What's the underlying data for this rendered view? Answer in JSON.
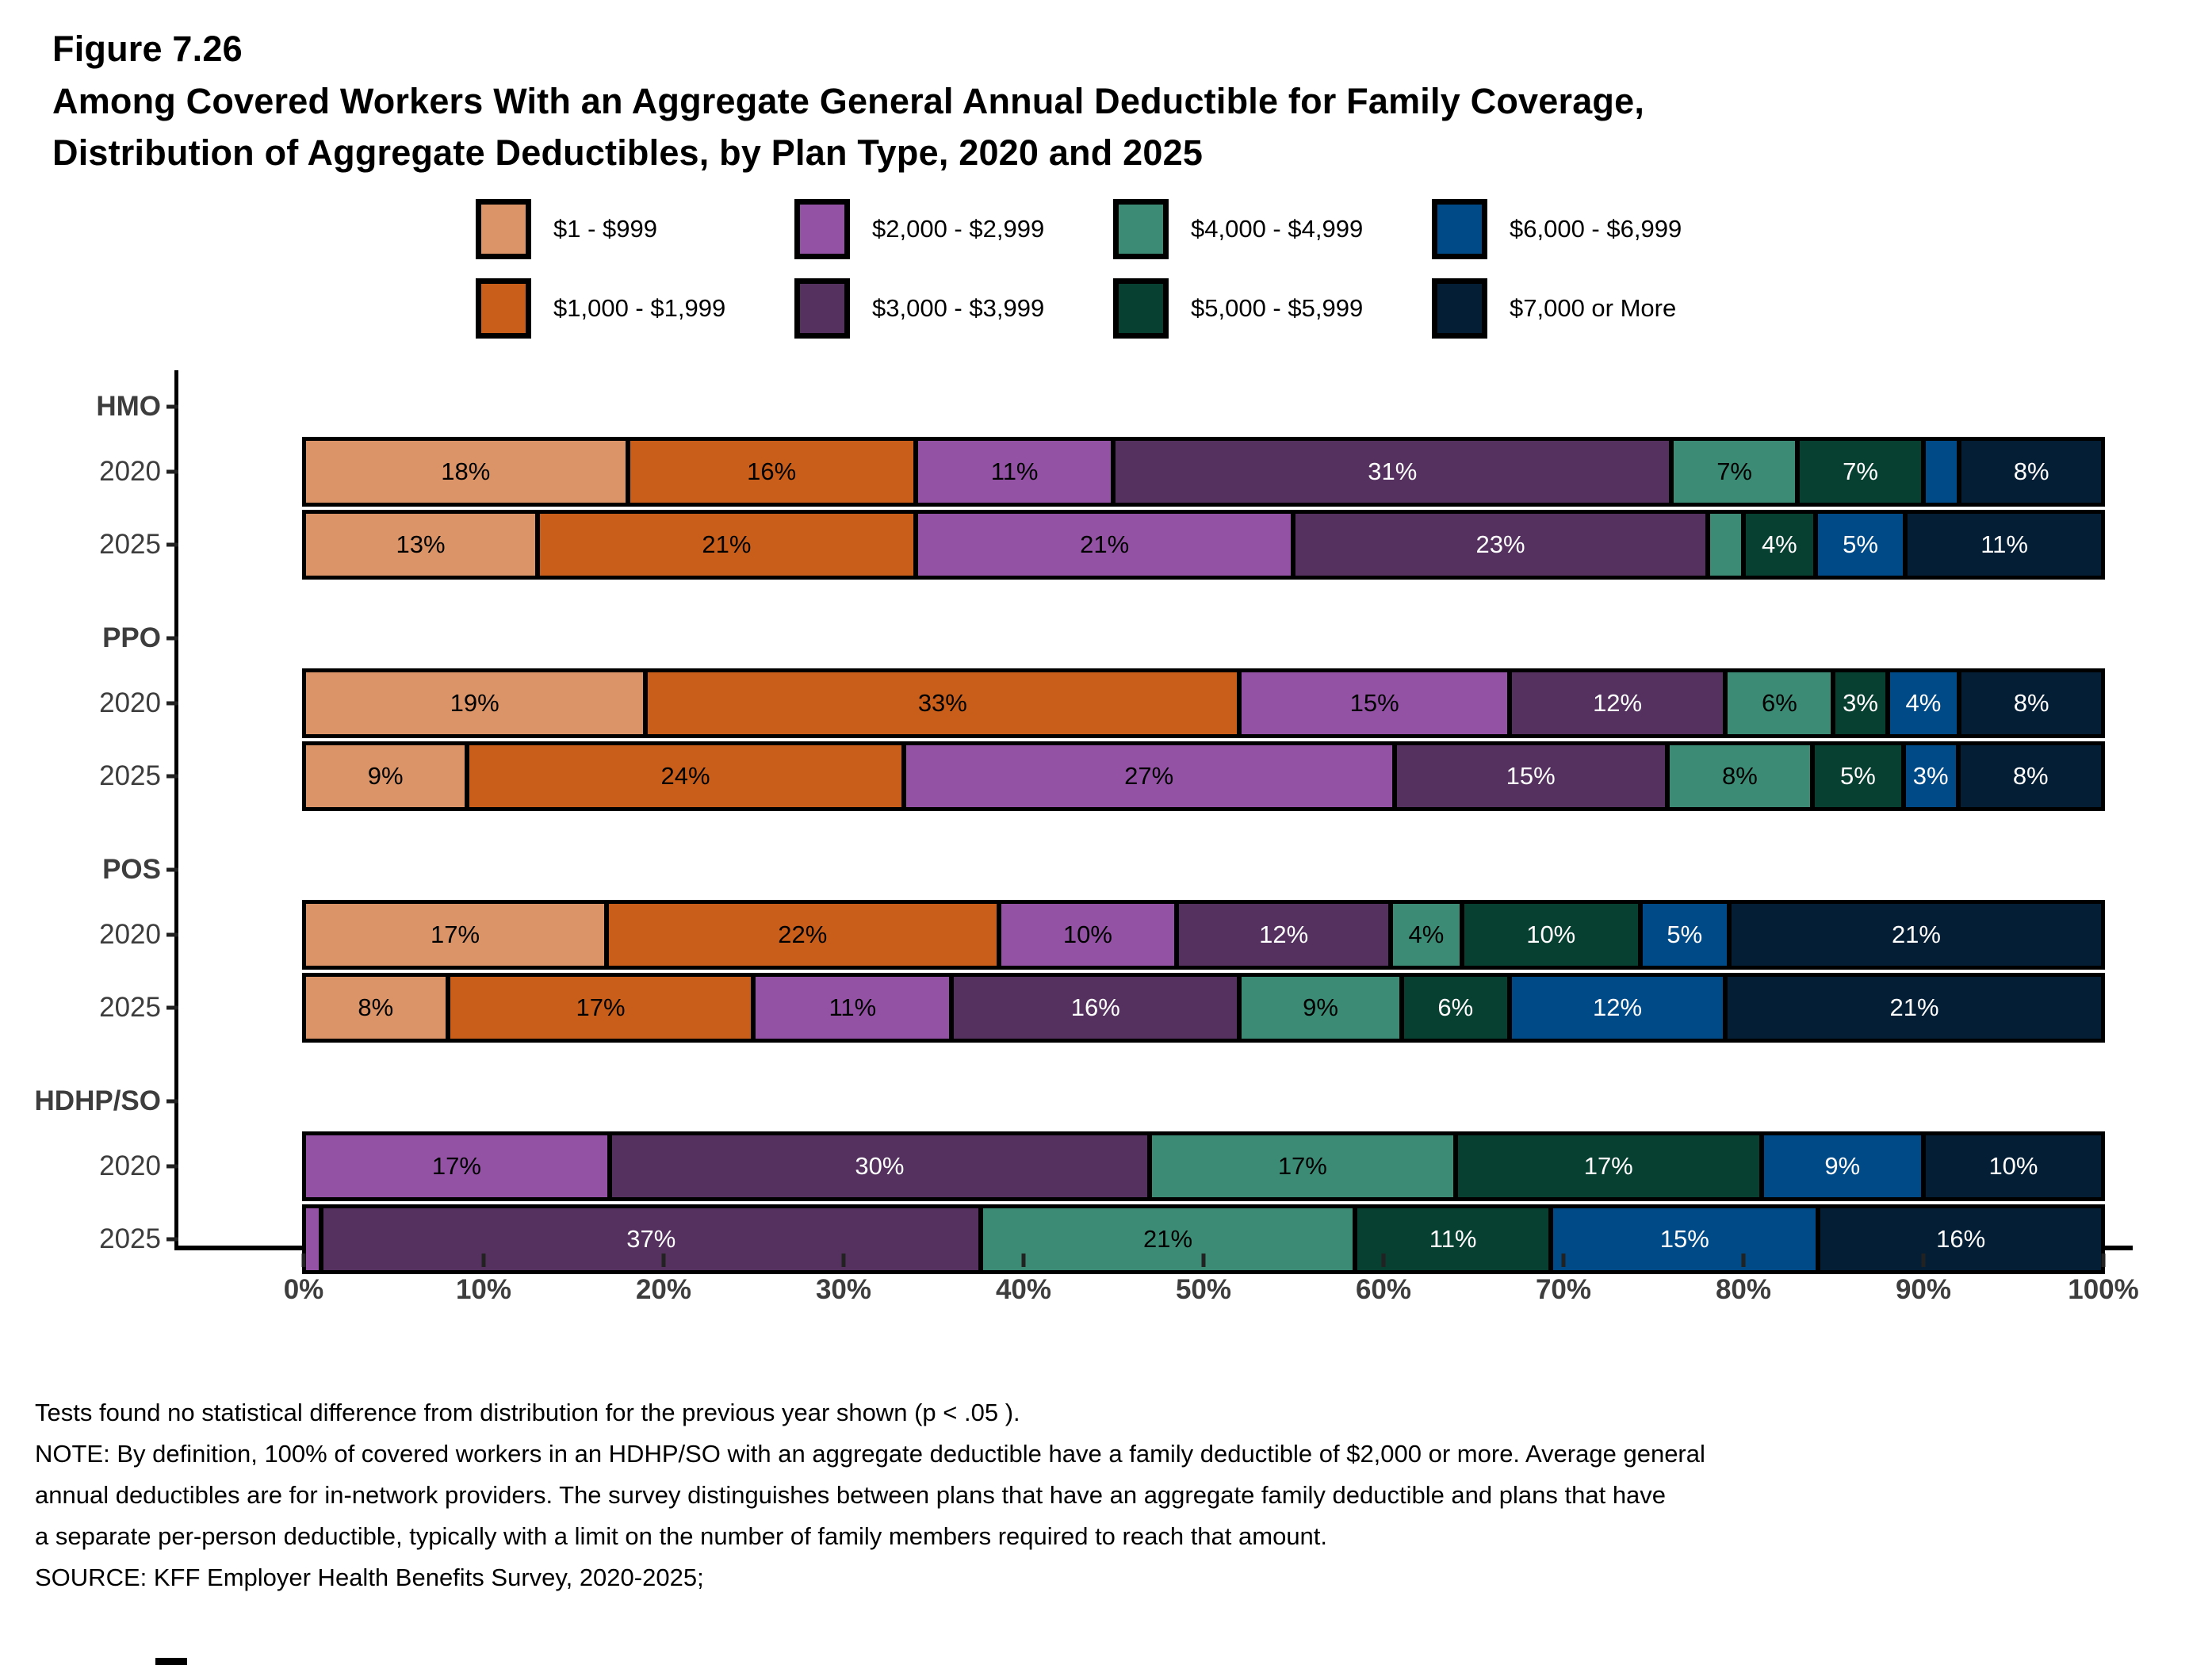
{
  "figure": {
    "number": "Figure 7.26",
    "title_lines": [
      "Among Covered Workers With an Aggregate General Annual Deductible for Family Coverage,",
      "Distribution of Aggregate Deductibles, by Plan Type, 2020 and 2025"
    ]
  },
  "legend": {
    "items": [
      {
        "label": "$1 - $999",
        "color": "#DB9467",
        "text_color": "#000000"
      },
      {
        "label": "$2,000 - $2,999",
        "color": "#9452A5",
        "text_color": "#000000"
      },
      {
        "label": "$4,000 - $4,999",
        "color": "#3C8C75",
        "text_color": "#000000"
      },
      {
        "label": "$6,000 - $6,999",
        "color": "#004B87",
        "text_color": "#FFFFFF"
      },
      {
        "label": "$1,000 - $1,999",
        "color": "#C95E1A",
        "text_color": "#000000"
      },
      {
        "label": "$3,000 - $3,999",
        "color": "#55315F",
        "text_color": "#FFFFFF"
      },
      {
        "label": "$5,000 - $5,999",
        "color": "#073F31",
        "text_color": "#FFFFFF"
      },
      {
        "label": "$7,000 or More",
        "color": "#041E35",
        "text_color": "#FFFFFF"
      }
    ]
  },
  "chart_data": {
    "type": "bar",
    "orientation": "horizontal-stacked",
    "unit": "percent of covered workers",
    "x_axis": {
      "range": [
        0,
        100
      ],
      "ticks": [
        "0%",
        "10%",
        "20%",
        "30%",
        "40%",
        "50%",
        "60%",
        "70%",
        "80%",
        "90%",
        "100%"
      ]
    },
    "categories": [
      "$1 - $999",
      "$1,000 - $1,999",
      "$2,000 - $2,999",
      "$3,000 - $3,999",
      "$4,000 - $4,999",
      "$5,000 - $5,999",
      "$6,000 - $6,999",
      "$7,000 or More"
    ],
    "groups": [
      {
        "plan": "HMO",
        "rows": [
          {
            "year": "2020",
            "segments": [
              {
                "category": "$1 - $999",
                "value": 18,
                "label": "18%"
              },
              {
                "category": "$1,000 - $1,999",
                "value": 16,
                "label": "16%"
              },
              {
                "category": "$2,000 - $2,999",
                "value": 11,
                "label": "11%"
              },
              {
                "category": "$3,000 - $3,999",
                "value": 31,
                "label": "31%"
              },
              {
                "category": "$4,000 - $4,999",
                "value": 7,
                "label": "7%"
              },
              {
                "category": "$5,000 - $5,999",
                "value": 7,
                "label": "7%"
              },
              {
                "category": "$6,000 - $6,999",
                "value": 2,
                "label": ""
              },
              {
                "category": "$7,000 or More",
                "value": 8,
                "label": "8%"
              }
            ]
          },
          {
            "year": "2025",
            "segments": [
              {
                "category": "$1 - $999",
                "value": 13,
                "label": "13%"
              },
              {
                "category": "$1,000 - $1,999",
                "value": 21,
                "label": "21%"
              },
              {
                "category": "$2,000 - $2,999",
                "value": 21,
                "label": "21%"
              },
              {
                "category": "$3,000 - $3,999",
                "value": 23,
                "label": "23%"
              },
              {
                "category": "$4,000 - $4,999",
                "value": 2,
                "label": ""
              },
              {
                "category": "$5,000 - $5,999",
                "value": 4,
                "label": "4%"
              },
              {
                "category": "$6,000 - $6,999",
                "value": 5,
                "label": "5%"
              },
              {
                "category": "$7,000 or More",
                "value": 11,
                "label": "11%"
              }
            ]
          }
        ]
      },
      {
        "plan": "PPO",
        "rows": [
          {
            "year": "2020",
            "segments": [
              {
                "category": "$1 - $999",
                "value": 19,
                "label": "19%"
              },
              {
                "category": "$1,000 - $1,999",
                "value": 33,
                "label": "33%"
              },
              {
                "category": "$2,000 - $2,999",
                "value": 15,
                "label": "15%"
              },
              {
                "category": "$3,000 - $3,999",
                "value": 12,
                "label": "12%"
              },
              {
                "category": "$4,000 - $4,999",
                "value": 6,
                "label": "6%"
              },
              {
                "category": "$5,000 - $5,999",
                "value": 3,
                "label": "3%"
              },
              {
                "category": "$6,000 - $6,999",
                "value": 4,
                "label": "4%"
              },
              {
                "category": "$7,000 or More",
                "value": 8,
                "label": "8%"
              }
            ]
          },
          {
            "year": "2025",
            "segments": [
              {
                "category": "$1 - $999",
                "value": 9,
                "label": "9%"
              },
              {
                "category": "$1,000 - $1,999",
                "value": 24,
                "label": "24%"
              },
              {
                "category": "$2,000 - $2,999",
                "value": 27,
                "label": "27%"
              },
              {
                "category": "$3,000 - $3,999",
                "value": 15,
                "label": "15%"
              },
              {
                "category": "$4,000 - $4,999",
                "value": 8,
                "label": "8%"
              },
              {
                "category": "$5,000 - $5,999",
                "value": 5,
                "label": "5%"
              },
              {
                "category": "$6,000 - $6,999",
                "value": 3,
                "label": "3%"
              },
              {
                "category": "$7,000 or More",
                "value": 8,
                "label": "8%"
              }
            ]
          }
        ]
      },
      {
        "plan": "POS",
        "rows": [
          {
            "year": "2020",
            "segments": [
              {
                "category": "$1 - $999",
                "value": 17,
                "label": "17%"
              },
              {
                "category": "$1,000 - $1,999",
                "value": 22,
                "label": "22%"
              },
              {
                "category": "$2,000 - $2,999",
                "value": 10,
                "label": "10%"
              },
              {
                "category": "$3,000 - $3,999",
                "value": 12,
                "label": "12%"
              },
              {
                "category": "$4,000 - $4,999",
                "value": 4,
                "label": "4%"
              },
              {
                "category": "$5,000 - $5,999",
                "value": 10,
                "label": "10%"
              },
              {
                "category": "$6,000 - $6,999",
                "value": 5,
                "label": "5%"
              },
              {
                "category": "$7,000 or More",
                "value": 21,
                "label": "21%"
              }
            ]
          },
          {
            "year": "2025",
            "segments": [
              {
                "category": "$1 - $999",
                "value": 8,
                "label": "8%"
              },
              {
                "category": "$1,000 - $1,999",
                "value": 17,
                "label": "17%"
              },
              {
                "category": "$2,000 - $2,999",
                "value": 11,
                "label": "11%"
              },
              {
                "category": "$3,000 - $3,999",
                "value": 16,
                "label": "16%"
              },
              {
                "category": "$4,000 - $4,999",
                "value": 9,
                "label": "9%"
              },
              {
                "category": "$5,000 - $5,999",
                "value": 6,
                "label": "6%"
              },
              {
                "category": "$6,000 - $6,999",
                "value": 12,
                "label": "12%"
              },
              {
                "category": "$7,000 or More",
                "value": 21,
                "label": "21%"
              }
            ]
          }
        ]
      },
      {
        "plan": "HDHP/SO",
        "rows": [
          {
            "year": "2020",
            "segments": [
              {
                "category": "$2,000 - $2,999",
                "value": 17,
                "label": "17%"
              },
              {
                "category": "$3,000 - $3,999",
                "value": 30,
                "label": "30%"
              },
              {
                "category": "$4,000 - $4,999",
                "value": 17,
                "label": "17%"
              },
              {
                "category": "$5,000 - $5,999",
                "value": 17,
                "label": "17%"
              },
              {
                "category": "$6,000 - $6,999",
                "value": 9,
                "label": "9%"
              },
              {
                "category": "$7,000 or More",
                "value": 10,
                "label": "10%"
              }
            ]
          },
          {
            "year": "2025",
            "segments": [
              {
                "category": "$2,000 - $2,999",
                "value": 1,
                "label": ""
              },
              {
                "category": "$3,000 - $3,999",
                "value": 37,
                "label": "37%"
              },
              {
                "category": "$4,000 - $4,999",
                "value": 21,
                "label": "21%"
              },
              {
                "category": "$5,000 - $5,999",
                "value": 11,
                "label": "11%"
              },
              {
                "category": "$6,000 - $6,999",
                "value": 15,
                "label": "15%"
              },
              {
                "category": "$7,000 or More",
                "value": 16,
                "label": "16%"
              }
            ]
          }
        ]
      }
    ]
  },
  "footnotes": {
    "lines": [
      "Tests found no statistical difference from distribution for the previous year shown (p < .05 ).",
      "NOTE: By definition, 100% of covered workers in an HDHP/SO with an aggregate deductible have a family deductible of $2,000 or more. Average general",
      "annual deductibles are for in-network providers. The survey distinguishes between plans that have an aggregate family deductible and plans that have",
      "a separate per-person deductible, typically with a limit on the number of family members required to reach that amount.",
      "SOURCE: KFF Employer Health Benefits Survey, 2020-2025;"
    ]
  }
}
